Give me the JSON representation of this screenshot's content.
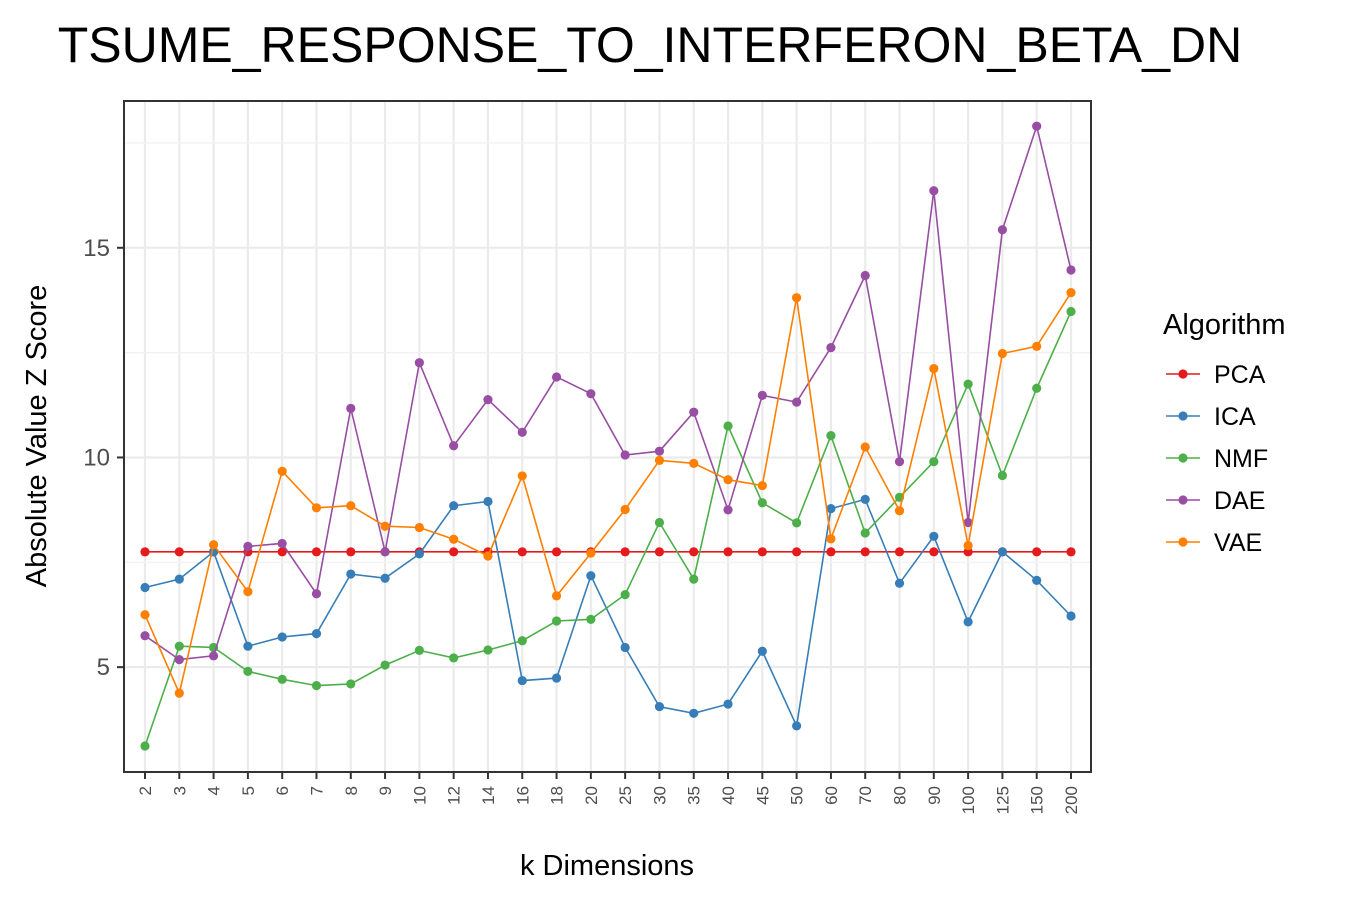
{
  "chart_data": {
    "type": "line",
    "title": "TSUME_RESPONSE_TO_INTERFERON_BETA_DN",
    "xlabel": "k Dimensions",
    "ylabel": "Absolute Value Z Score",
    "categories": [
      "2",
      "3",
      "4",
      "5",
      "6",
      "7",
      "8",
      "9",
      "10",
      "12",
      "14",
      "16",
      "18",
      "20",
      "25",
      "30",
      "35",
      "40",
      "45",
      "50",
      "60",
      "70",
      "80",
      "90",
      "100",
      "125",
      "150",
      "200"
    ],
    "ylim": [
      2.5,
      18.5
    ],
    "yticks": [
      5,
      10,
      15
    ],
    "grid": true,
    "legend_title": "Algorithm",
    "legend_position": "right",
    "series": [
      {
        "name": "PCA",
        "color": "#E41A1C",
        "values": [
          7.75,
          7.75,
          7.75,
          7.75,
          7.75,
          7.75,
          7.75,
          7.75,
          7.75,
          7.75,
          7.75,
          7.75,
          7.75,
          7.75,
          7.75,
          7.75,
          7.75,
          7.75,
          7.75,
          7.75,
          7.75,
          7.75,
          7.75,
          7.75,
          7.75,
          7.75,
          7.75,
          7.75
        ]
      },
      {
        "name": "ICA",
        "color": "#377EB8",
        "values": [
          6.9,
          7.1,
          7.75,
          5.5,
          5.72,
          5.8,
          7.22,
          7.12,
          7.7,
          8.85,
          8.95,
          4.68,
          4.74,
          7.18,
          5.47,
          4.06,
          3.9,
          4.12,
          5.38,
          3.6,
          8.78,
          9.0,
          7.0,
          8.12,
          6.08,
          7.75,
          7.07,
          6.22
        ]
      },
      {
        "name": "NMF",
        "color": "#4DAF4A",
        "values": [
          3.12,
          5.5,
          5.47,
          4.9,
          4.71,
          4.56,
          4.6,
          5.05,
          5.4,
          5.22,
          5.41,
          5.63,
          6.1,
          6.14,
          6.73,
          8.45,
          7.1,
          10.75,
          8.92,
          8.44,
          10.52,
          8.2,
          9.05,
          9.9,
          11.75,
          9.57,
          11.65,
          13.48
        ]
      },
      {
        "name": "DAE",
        "color": "#984EA3",
        "values": [
          5.75,
          5.18,
          5.27,
          7.88,
          7.95,
          6.75,
          11.17,
          7.75,
          12.26,
          10.28,
          11.38,
          10.6,
          11.92,
          11.52,
          10.06,
          10.15,
          11.08,
          8.75,
          11.48,
          11.32,
          12.62,
          14.34,
          9.9,
          16.36,
          8.45,
          15.43,
          17.9,
          14.47
        ]
      },
      {
        "name": "VAE",
        "color": "#FF7F00",
        "values": [
          6.25,
          4.38,
          7.92,
          6.8,
          9.67,
          8.8,
          8.85,
          8.36,
          8.33,
          8.05,
          7.65,
          9.56,
          6.7,
          7.72,
          8.76,
          9.93,
          9.86,
          9.47,
          9.33,
          13.81,
          8.06,
          10.25,
          8.73,
          12.12,
          7.9,
          12.48,
          12.65,
          13.93
        ]
      }
    ]
  }
}
